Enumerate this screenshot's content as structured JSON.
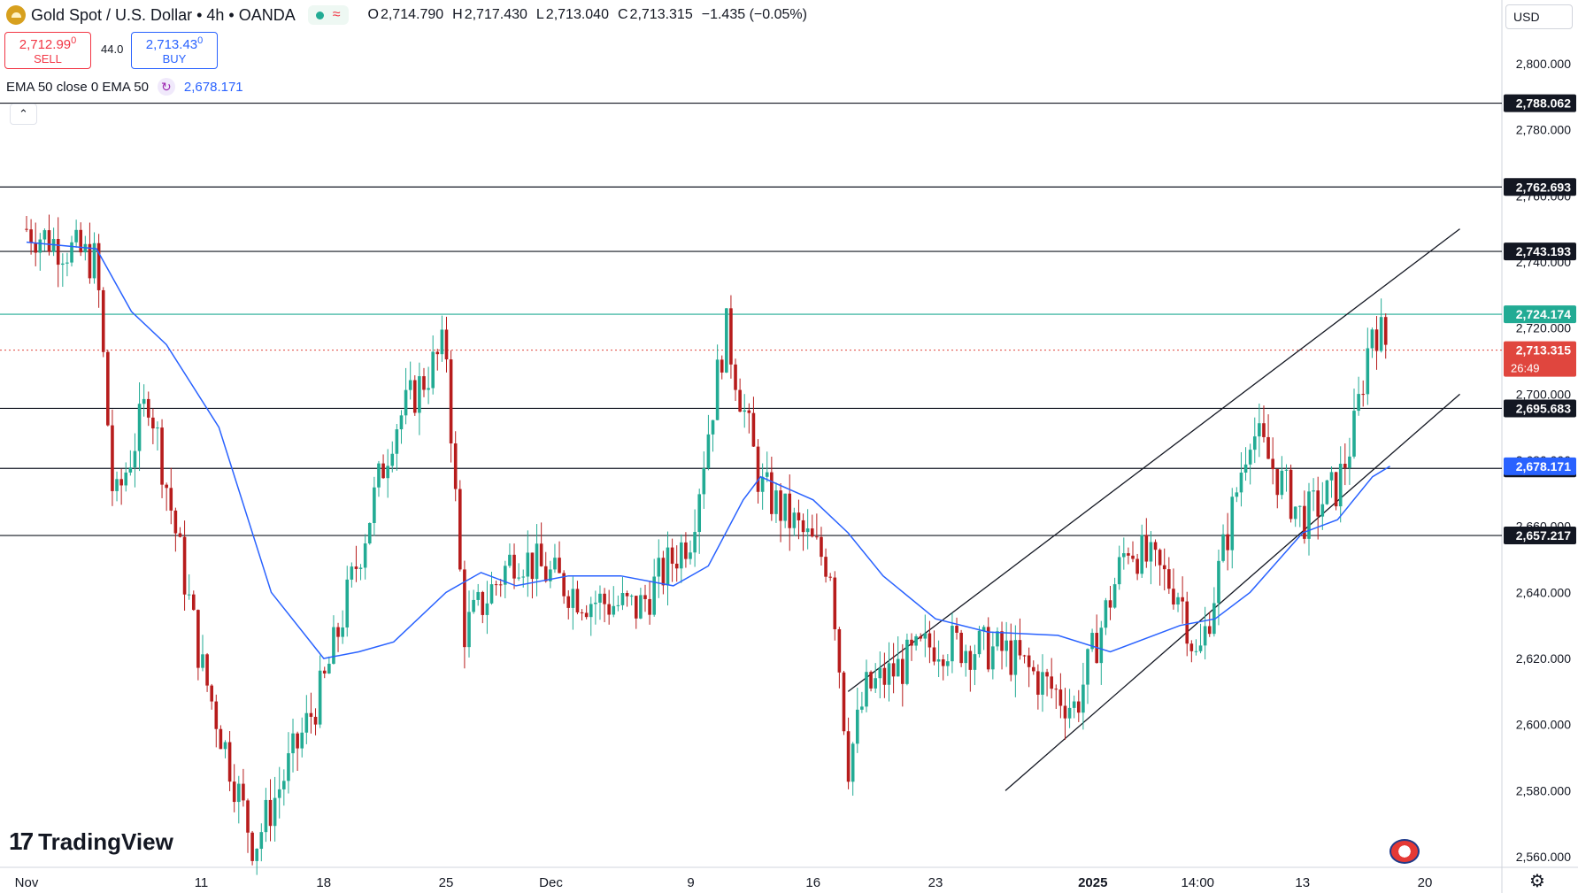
{
  "header": {
    "title": "Gold Spot / U.S. Dollar • 4h • OANDA",
    "ohlc": {
      "o_label": "O",
      "o": "2,714.790",
      "h_label": "H",
      "h": "2,717.430",
      "l_label": "L",
      "l": "2,713.040",
      "c_label": "C",
      "c": "2,713.315",
      "change": "−1.435 (−0.05%)"
    },
    "wave_icon": "≈"
  },
  "trade": {
    "sell_price": "2,712.99",
    "sell_sup": "0",
    "sell_label": "SELL",
    "spread": "44.0",
    "buy_price": "2,713.43",
    "buy_sup": "0",
    "buy_label": "BUY"
  },
  "indicator": {
    "label": "EMA 50 close 0 EMA 50",
    "value": "2,678.171",
    "icon": "refresh-icon"
  },
  "currency": "USD",
  "branding": "TradingView",
  "colors": {
    "up": "#22ab94",
    "down": "#b71c1c",
    "ema": "#2962ff",
    "level": "#131722",
    "current_price": "#e0463e",
    "resistance": "#22ab94"
  },
  "chart_data": {
    "type": "candlestick",
    "symbol": "XAUUSD",
    "timeframe": "4h",
    "ylim": [
      2555,
      2810
    ],
    "y_ticks": [
      "2,800.000",
      "2,780.000",
      "2,760.000",
      "2,740.000",
      "2,720.000",
      "2,700.000",
      "2,680.000",
      "2,660.000",
      "2,640.000",
      "2,620.000",
      "2,600.000",
      "2,580.000",
      "2,560.000"
    ],
    "x_ticks": [
      {
        "label": "Nov",
        "date": "2024-11-01"
      },
      {
        "label": "11",
        "date": "2024-11-11"
      },
      {
        "label": "18",
        "date": "2024-11-18"
      },
      {
        "label": "25",
        "date": "2024-11-25"
      },
      {
        "label": "Dec",
        "date": "2024-12-01"
      },
      {
        "label": "9",
        "date": "2024-12-09"
      },
      {
        "label": "16",
        "date": "2024-12-16"
      },
      {
        "label": "23",
        "date": "2024-12-23"
      },
      {
        "label": "2025",
        "date": "2025-01-01"
      },
      {
        "label": "14:00",
        "date": "2025-01-07"
      },
      {
        "label": "13",
        "date": "2025-01-13"
      },
      {
        "label": "20",
        "date": "2025-01-20"
      }
    ],
    "price_path": [
      {
        "date": "2024-11-01",
        "close": 2750
      },
      {
        "date": "2024-11-05",
        "close": 2740
      },
      {
        "date": "2024-11-06",
        "close": 2665
      },
      {
        "date": "2024-11-08",
        "close": 2700
      },
      {
        "date": "2024-11-11",
        "close": 2618
      },
      {
        "date": "2024-11-14",
        "close": 2563
      },
      {
        "date": "2024-11-18",
        "close": 2612
      },
      {
        "date": "2024-11-22",
        "close": 2690
      },
      {
        "date": "2024-11-25",
        "close": 2715
      },
      {
        "date": "2024-11-26",
        "close": 2628
      },
      {
        "date": "2024-11-29",
        "close": 2652
      },
      {
        "date": "2024-12-03",
        "close": 2638
      },
      {
        "date": "2024-12-06",
        "close": 2635
      },
      {
        "date": "2024-12-09",
        "close": 2658
      },
      {
        "date": "2024-12-11",
        "close": 2720
      },
      {
        "date": "2024-12-13",
        "close": 2672
      },
      {
        "date": "2024-12-17",
        "close": 2648
      },
      {
        "date": "2024-12-18",
        "close": 2588
      },
      {
        "date": "2024-12-19",
        "close": 2610
      },
      {
        "date": "2024-12-23",
        "close": 2625
      },
      {
        "date": "2024-12-27",
        "close": 2622
      },
      {
        "date": "2024-12-31",
        "close": 2605
      },
      {
        "date": "2025-01-03",
        "close": 2655
      },
      {
        "date": "2025-01-06",
        "close": 2640
      },
      {
        "date": "2025-01-07",
        "close": 2618
      },
      {
        "date": "2025-01-09",
        "close": 2665
      },
      {
        "date": "2025-01-10",
        "close": 2690
      },
      {
        "date": "2025-01-13",
        "close": 2662
      },
      {
        "date": "2025-01-15",
        "close": 2672
      },
      {
        "date": "2025-01-16",
        "close": 2690
      },
      {
        "date": "2025-01-17",
        "close": 2722
      },
      {
        "date": "2025-01-18",
        "close": 2713.315
      }
    ],
    "ema_path": [
      {
        "date": "2024-11-01",
        "value": 2746
      },
      {
        "date": "2024-11-05",
        "value": 2744
      },
      {
        "date": "2024-11-07",
        "value": 2725
      },
      {
        "date": "2024-11-09",
        "value": 2715
      },
      {
        "date": "2024-11-12",
        "value": 2690
      },
      {
        "date": "2024-11-15",
        "value": 2640
      },
      {
        "date": "2024-11-18",
        "value": 2620
      },
      {
        "date": "2024-11-20",
        "value": 2622
      },
      {
        "date": "2024-11-22",
        "value": 2625
      },
      {
        "date": "2024-11-25",
        "value": 2640
      },
      {
        "date": "2024-11-27",
        "value": 2646
      },
      {
        "date": "2024-11-29",
        "value": 2642
      },
      {
        "date": "2024-12-02",
        "value": 2645
      },
      {
        "date": "2024-12-05",
        "value": 2645
      },
      {
        "date": "2024-12-08",
        "value": 2642
      },
      {
        "date": "2024-12-10",
        "value": 2648
      },
      {
        "date": "2024-12-12",
        "value": 2668
      },
      {
        "date": "2024-12-13",
        "value": 2675
      },
      {
        "date": "2024-12-16",
        "value": 2668
      },
      {
        "date": "2024-12-18",
        "value": 2658
      },
      {
        "date": "2024-12-20",
        "value": 2645
      },
      {
        "date": "2024-12-23",
        "value": 2632
      },
      {
        "date": "2024-12-26",
        "value": 2628
      },
      {
        "date": "2024-12-30",
        "value": 2627
      },
      {
        "date": "2025-01-02",
        "value": 2622
      },
      {
        "date": "2025-01-06",
        "value": 2630
      },
      {
        "date": "2025-01-08",
        "value": 2632
      },
      {
        "date": "2025-01-10",
        "value": 2640
      },
      {
        "date": "2025-01-13",
        "value": 2658
      },
      {
        "date": "2025-01-15",
        "value": 2662
      },
      {
        "date": "2025-01-17",
        "value": 2675
      },
      {
        "date": "2025-01-18",
        "value": 2678.171
      }
    ],
    "levels": [
      {
        "label": "2,788.062",
        "value": 2788.062,
        "color": "#131722"
      },
      {
        "label": "2,762.693",
        "value": 2762.693,
        "color": "#131722"
      },
      {
        "label": "2,743.193",
        "value": 2743.193,
        "color": "#131722"
      },
      {
        "label": "2,724.174",
        "value": 2724.174,
        "color": "#22ab94"
      },
      {
        "label": "2,695.683",
        "value": 2695.683,
        "color": "#131722"
      },
      {
        "label": "2,677.515",
        "value": 2677.515,
        "color": "#131722"
      },
      {
        "label": "2,657.217",
        "value": 2657.217,
        "color": "#131722"
      }
    ],
    "ema_tag": {
      "label": "2,678.171",
      "value": 2678.171
    },
    "current_price": {
      "label": "2,713.315",
      "value": 2713.315,
      "countdown": "26:49"
    },
    "trendlines": [
      {
        "from": {
          "date": "2024-12-18",
          "value": 2610
        },
        "to": {
          "date": "2025-01-22",
          "value": 2750
        }
      },
      {
        "from": {
          "date": "2024-12-27",
          "value": 2580
        },
        "to": {
          "date": "2025-01-22",
          "value": 2700
        }
      }
    ]
  }
}
